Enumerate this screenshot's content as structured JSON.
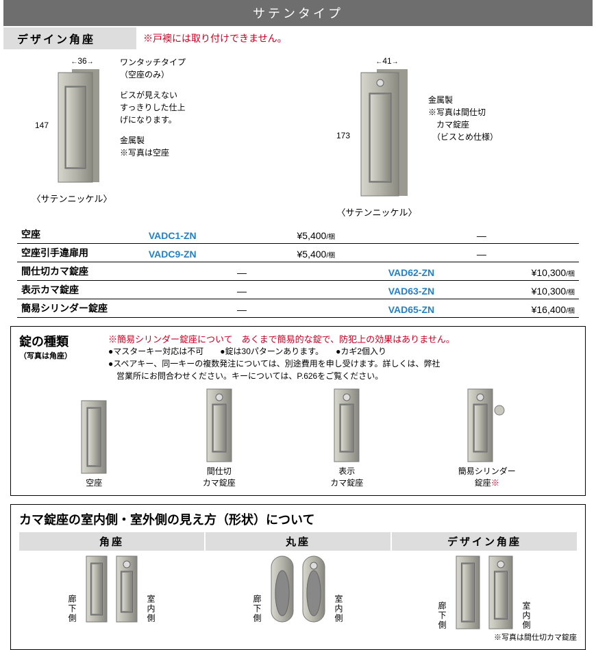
{
  "title": "サテンタイプ",
  "sub_title": "デザイン角座",
  "sub_warn": "※戸襖には取り付けできません。",
  "products": {
    "left": {
      "width_dim": "36",
      "height_dim": "147",
      "caption": "〈サテンニッケル〉",
      "desc_heading": "ワンタッチタイプ\n（空座のみ）",
      "desc_body": "ビスが見えない\nすっきりした仕上\nげになります。",
      "material": "金属製",
      "photo_note": "※写真は空座"
    },
    "right": {
      "width_dim": "41",
      "height_dim": "173",
      "caption": "〈サテンニッケル〉",
      "material": "金属製",
      "photo_note": "※写真は間仕切\n　カマ錠座\n　（ビスとめ仕様）"
    }
  },
  "price_rows": [
    {
      "label": "空座",
      "l_code": "VADC1-ZN",
      "l_price": "¥5,400",
      "l_unit": "/梱",
      "r_code": "",
      "r_price": "—",
      "r_unit": ""
    },
    {
      "label": "空座引手違扉用",
      "l_code": "VADC9-ZN",
      "l_price": "¥5,400",
      "l_unit": "/梱",
      "r_code": "",
      "r_price": "—",
      "r_unit": ""
    },
    {
      "label": "間仕切カマ錠座",
      "l_code": "",
      "l_price": "—",
      "l_unit": "",
      "r_code": "VAD62-ZN",
      "r_price": "¥10,300",
      "r_unit": "/梱"
    },
    {
      "label": "表示カマ錠座",
      "l_code": "",
      "l_price": "—",
      "l_unit": "",
      "r_code": "VAD63-ZN",
      "r_price": "¥10,300",
      "r_unit": "/梱"
    },
    {
      "label": "簡易シリンダー錠座",
      "l_code": "",
      "l_price": "—",
      "l_unit": "",
      "r_code": "VAD65-ZN",
      "r_price": "¥16,400",
      "r_unit": "/梱"
    }
  ],
  "lockbox": {
    "title": "錠の種類",
    "subtitle": "（写真は角座）",
    "warn": "※簡易シリンダー錠座について　あくまで簡易的な錠で、防犯上の効果はありません。",
    "bullets": [
      "マスターキー対応は不可",
      "錠は30パターンあります。",
      "カギ2個入り",
      "スペアキー、同一キーの複数発注については、別途費用を申し受けます。詳しくは、弊社",
      "営業所にお問合わせください。キーについては、P.626をご覧ください。"
    ],
    "types": [
      {
        "label": "空座",
        "red": ""
      },
      {
        "label": "間仕切\nカマ錠座",
        "red": ""
      },
      {
        "label": "表示\nカマ錠座",
        "red": ""
      },
      {
        "label": "簡易シリンダー\n錠座",
        "red": "※"
      }
    ]
  },
  "shapebox": {
    "title": "カマ錠座の室内側・室外側の見え方（形状）について",
    "cols": [
      {
        "head": "角座",
        "left": "廊下側",
        "right": "室内側",
        "shape": "rect"
      },
      {
        "head": "丸座",
        "left": "廊下側",
        "right": "室内側",
        "shape": "round"
      },
      {
        "head": "デザイン角座",
        "left": "廊下側",
        "right": "室内側",
        "shape": "design"
      }
    ],
    "note": "※写真は間仕切カマ錠座"
  },
  "colors": {
    "metal_light": "#cfcfc8",
    "metal_mid": "#b0b0a6",
    "metal_dark": "#84847a",
    "metal_shadow": "#5c5c54"
  }
}
